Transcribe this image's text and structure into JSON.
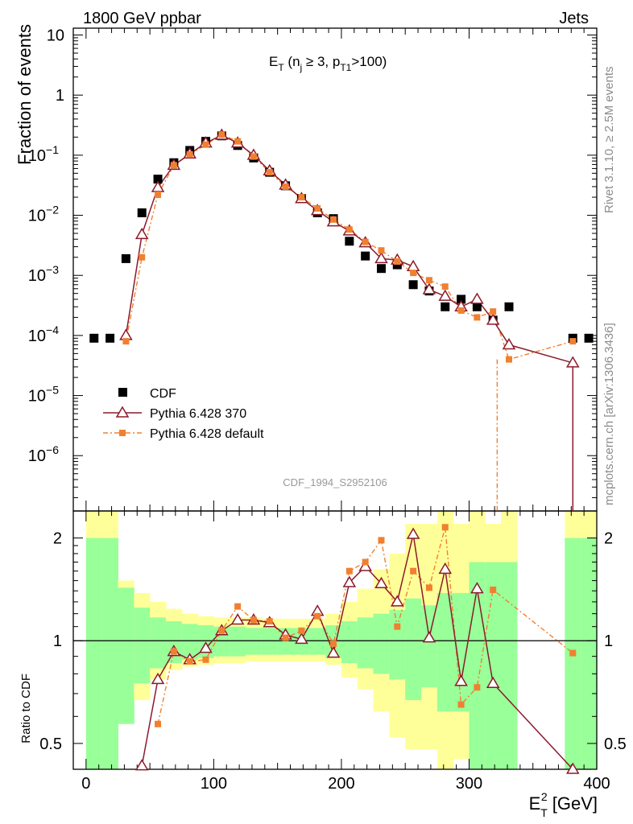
{
  "header": {
    "left": "1800 GeV ppbar",
    "right": "Jets"
  },
  "side_text": {
    "rivet": "Rivet 3.1.10, ≥ 2.5M events",
    "mcplots": "mcplots.cern.ch [arXiv:1306.3436]"
  },
  "analysis_id": "CDF_1994_S2952106",
  "colors": {
    "data": "#000000",
    "pythia370": "#8b1a2b",
    "pythiaDefault": "#f08030",
    "band_inner": "#99ff99",
    "band_outer": "#ffff99"
  },
  "chart_data": [
    {
      "type": "scatter",
      "title": "E_T (n_j ≥ 3, p_T1>100)",
      "ylabel": "Fraction of events",
      "yscale": "log",
      "ylim": [
        1.2e-07,
        13
      ],
      "xlim": [
        -10,
        400
      ],
      "y_tick_labels": [
        "10",
        "1",
        "10^-1",
        "10^-2",
        "10^-3",
        "10^-4",
        "10^-5",
        "10^-6"
      ],
      "legend_position": "middle-left",
      "series": [
        {
          "name": "CDF",
          "marker": "square",
          "x": [
            6.25,
            18.75,
            31.25,
            43.75,
            56.25,
            68.75,
            81.25,
            93.75,
            106.25,
            118.75,
            131.25,
            143.75,
            156.25,
            168.75,
            181.25,
            193.75,
            206.25,
            218.75,
            231.25,
            243.75,
            256.25,
            268.75,
            281.25,
            293.75,
            306.25,
            318.75,
            331.25,
            381.25,
            393.75
          ],
          "y": [
            9e-05,
            9e-05,
            0.0019,
            0.011,
            0.04,
            0.075,
            0.12,
            0.17,
            0.21,
            0.145,
            0.09,
            0.052,
            0.031,
            0.019,
            0.011,
            0.0088,
            0.0037,
            0.0021,
            0.0013,
            0.0015,
            0.0007,
            0.00055,
            0.0003,
            0.0004,
            0.0003,
            0.00018,
            0.0003,
            9e-05,
            9e-05
          ]
        },
        {
          "name": "Pythia 6.428 370",
          "marker": "triangle",
          "x": [
            31.25,
            43.75,
            56.25,
            68.75,
            81.25,
            93.75,
            106.25,
            118.75,
            131.25,
            143.75,
            156.25,
            168.75,
            181.25,
            193.75,
            206.25,
            218.75,
            231.25,
            243.75,
            256.25,
            268.75,
            281.25,
            293.75,
            306.25,
            318.75,
            331.25,
            381.25
          ],
          "y": [
            0.0001,
            0.0048,
            0.029,
            0.068,
            0.105,
            0.16,
            0.215,
            0.16,
            0.1,
            0.055,
            0.032,
            0.019,
            0.012,
            0.0078,
            0.0055,
            0.0035,
            0.0019,
            0.0018,
            0.0014,
            0.00058,
            0.00045,
            0.0003,
            0.0004,
            0.00018,
            7e-05,
            3.5e-05
          ]
        },
        {
          "name": "Pythia 6.428 default",
          "marker": "square-small",
          "x": [
            31.25,
            43.75,
            56.25,
            68.75,
            81.25,
            93.75,
            106.25,
            118.75,
            131.25,
            143.75,
            156.25,
            168.75,
            181.25,
            193.75,
            206.25,
            218.75,
            231.25,
            243.75,
            256.25,
            268.75,
            281.25,
            293.75,
            306.25,
            318.75,
            331.25,
            381.25
          ],
          "y": [
            8e-05,
            0.002,
            0.022,
            0.068,
            0.103,
            0.15,
            0.22,
            0.17,
            0.095,
            0.052,
            0.03,
            0.02,
            0.013,
            0.0085,
            0.0058,
            0.0036,
            0.0026,
            0.0017,
            0.0011,
            0.00083,
            0.00065,
            0.00026,
            0.0002,
            0.00025,
            4e-05,
            8e-05
          ]
        }
      ]
    },
    {
      "type": "scatter",
      "ylabel": "Ratio to CDF",
      "xlabel": "E_T^2 [GeV]",
      "yscale": "log",
      "ylim": [
        0.42,
        2.4
      ],
      "xlim": [
        -10,
        400
      ],
      "x_ticks": [
        0,
        100,
        200,
        300,
        400
      ],
      "y_ticks": [
        0.5,
        1,
        2
      ],
      "bands": {
        "edges": [
          0,
          12.5,
          25,
          37.5,
          50,
          62.5,
          75,
          87.5,
          100,
          112.5,
          125,
          137.5,
          150,
          162.5,
          175,
          187.5,
          200,
          212.5,
          225,
          237.5,
          250,
          262.5,
          275,
          287.5,
          300,
          312.5,
          325,
          337.5,
          350,
          362.5,
          375,
          387.5,
          400
        ],
        "inner_lo": [
          0,
          0,
          0.57,
          0.75,
          0.83,
          0.86,
          0.88,
          0.89,
          0.9,
          0.9,
          0.91,
          0.91,
          0.91,
          0.91,
          0.91,
          0.89,
          0.86,
          0.83,
          0.8,
          0.77,
          0.67,
          0.73,
          0.62,
          0.62,
          0,
          0,
          0,
          0,
          0,
          0,
          0,
          0
        ],
        "inner_hi": [
          2,
          2,
          1.43,
          1.25,
          1.17,
          1.14,
          1.12,
          1.11,
          1.1,
          1.1,
          1.09,
          1.09,
          1.09,
          1.09,
          1.09,
          1.11,
          1.14,
          1.17,
          1.2,
          1.23,
          1.33,
          1.27,
          1.38,
          1.38,
          1.7,
          1.7,
          1.7,
          0,
          0,
          0,
          2,
          2
        ],
        "outer_lo": [
          0,
          0,
          0.62,
          0.67,
          0.77,
          0.82,
          0.84,
          0.85,
          0.86,
          0.86,
          0.87,
          0.87,
          0.87,
          0.87,
          0.87,
          0.85,
          0.78,
          0.72,
          0.62,
          0.52,
          0.48,
          0.48,
          0,
          0.45,
          0,
          0,
          0,
          0,
          0,
          0,
          0,
          0
        ],
        "outer_hi": [
          3,
          3,
          1.5,
          1.38,
          1.3,
          1.24,
          1.2,
          1.18,
          1.17,
          1.17,
          1.17,
          1.16,
          1.16,
          1.16,
          1.16,
          1.2,
          1.3,
          1.42,
          1.62,
          1.8,
          2.2,
          2.2,
          2.5,
          2.2,
          2.5,
          2.2,
          2.5,
          0,
          0,
          0,
          3,
          3
        ]
      },
      "series": [
        {
          "name": "Pythia 6.428 370",
          "x": [
            43.75,
            56.25,
            68.75,
            81.25,
            93.75,
            106.25,
            118.75,
            131.25,
            143.75,
            156.25,
            168.75,
            181.25,
            193.75,
            206.25,
            218.75,
            231.25,
            243.75,
            256.25,
            268.75,
            281.25,
            293.75,
            306.25,
            318.75,
            381.25
          ],
          "y": [
            0.43,
            0.77,
            0.93,
            0.88,
            0.95,
            1.07,
            1.15,
            1.15,
            1.13,
            1.04,
            1.01,
            1.22,
            0.92,
            1.48,
            1.65,
            1.47,
            1.3,
            2.05,
            1.02,
            1.62,
            0.76,
            1.42,
            0.75,
            0.4
          ]
        },
        {
          "name": "Pythia 6.428 default",
          "x": [
            56.25,
            68.75,
            81.25,
            93.75,
            106.25,
            118.75,
            131.25,
            143.75,
            156.25,
            168.75,
            181.25,
            193.75,
            206.25,
            218.75,
            231.25,
            243.75,
            256.25,
            268.75,
            281.25,
            293.75,
            306.25,
            318.75,
            381.25
          ],
          "y": [
            0.57,
            0.93,
            0.87,
            0.88,
            1.07,
            1.26,
            1.15,
            1.14,
            1.02,
            1.07,
            1.18,
            0.98,
            1.6,
            1.7,
            1.97,
            1.1,
            1.6,
            1.43,
            2.15,
            0.65,
            0.73,
            1.41,
            0.92
          ]
        }
      ]
    }
  ]
}
